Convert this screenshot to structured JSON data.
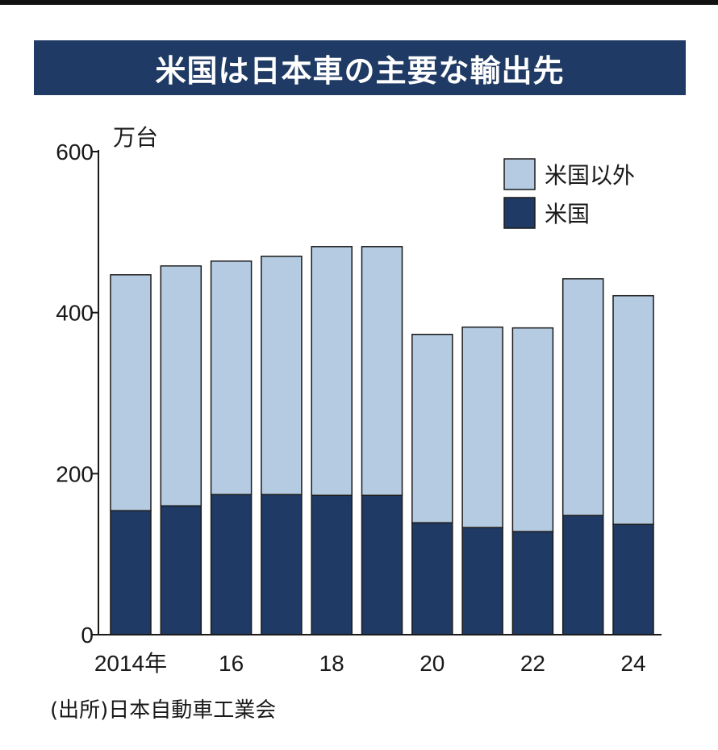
{
  "title": "米国は日本車の主要な輸出先",
  "source": "(出所)日本自動車工業会",
  "colors": {
    "banner": "#1f3a64",
    "us": "#1f3a64",
    "non_us": "#b4cbe2",
    "bar_stroke": "#1a1a1a"
  },
  "chart_data": {
    "type": "bar",
    "stacked": true,
    "unit_label": "万台",
    "categories": [
      "2014年",
      "",
      "16",
      "",
      "18",
      "",
      "20",
      "",
      "22",
      "",
      "24"
    ],
    "years": [
      2014,
      2015,
      2016,
      2017,
      2018,
      2019,
      2020,
      2021,
      2022,
      2023,
      2024
    ],
    "series": [
      {
        "name": "米国",
        "values": [
          154,
          160,
          174,
          174,
          173,
          173,
          139,
          133,
          128,
          148,
          137
        ]
      },
      {
        "name": "米国以外",
        "values": [
          293,
          298,
          290,
          296,
          309,
          309,
          234,
          249,
          253,
          294,
          284
        ]
      }
    ],
    "y_ticks": [
      "0",
      "200",
      "400",
      "600"
    ],
    "ylim": [
      0,
      600
    ],
    "grid": false,
    "legend": [
      "米国以外",
      "米国"
    ],
    "legend_placement": "top-right"
  }
}
